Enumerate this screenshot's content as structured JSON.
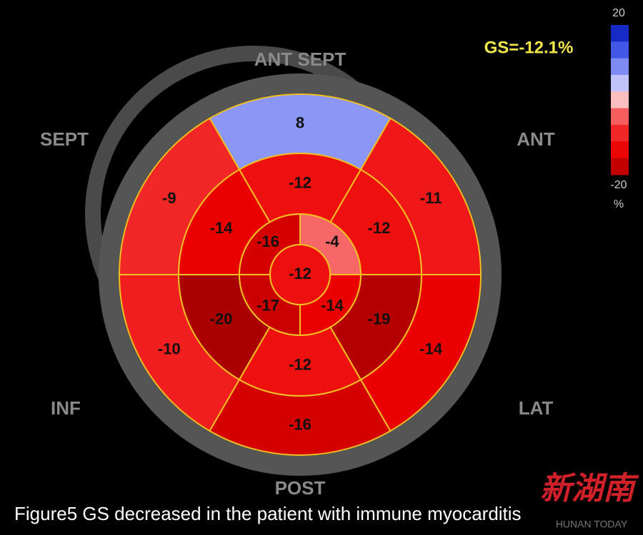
{
  "orientation_labels": {
    "ant_sept": "ANT  SEPT",
    "sept": "SEPT",
    "ant": "ANT",
    "inf": "INF",
    "lat": "LAT",
    "post": "POST"
  },
  "global_strain": "GS=-12.1%",
  "colorbar": {
    "max": 20,
    "min": -20,
    "unit": "%"
  },
  "segments": {
    "basal": [
      8,
      -9,
      -10,
      -16,
      -14,
      -11
    ],
    "mid": [
      -12,
      -14,
      -20,
      -12,
      -19,
      -12
    ],
    "apical": [
      -4,
      -16,
      -17,
      -14
    ],
    "apex": -12
  },
  "caption": "Figure5  GS decreased in the  patient with immune myocarditis",
  "watermark": {
    "logo": "新湖南",
    "text": "HUNAN TODAY"
  }
}
